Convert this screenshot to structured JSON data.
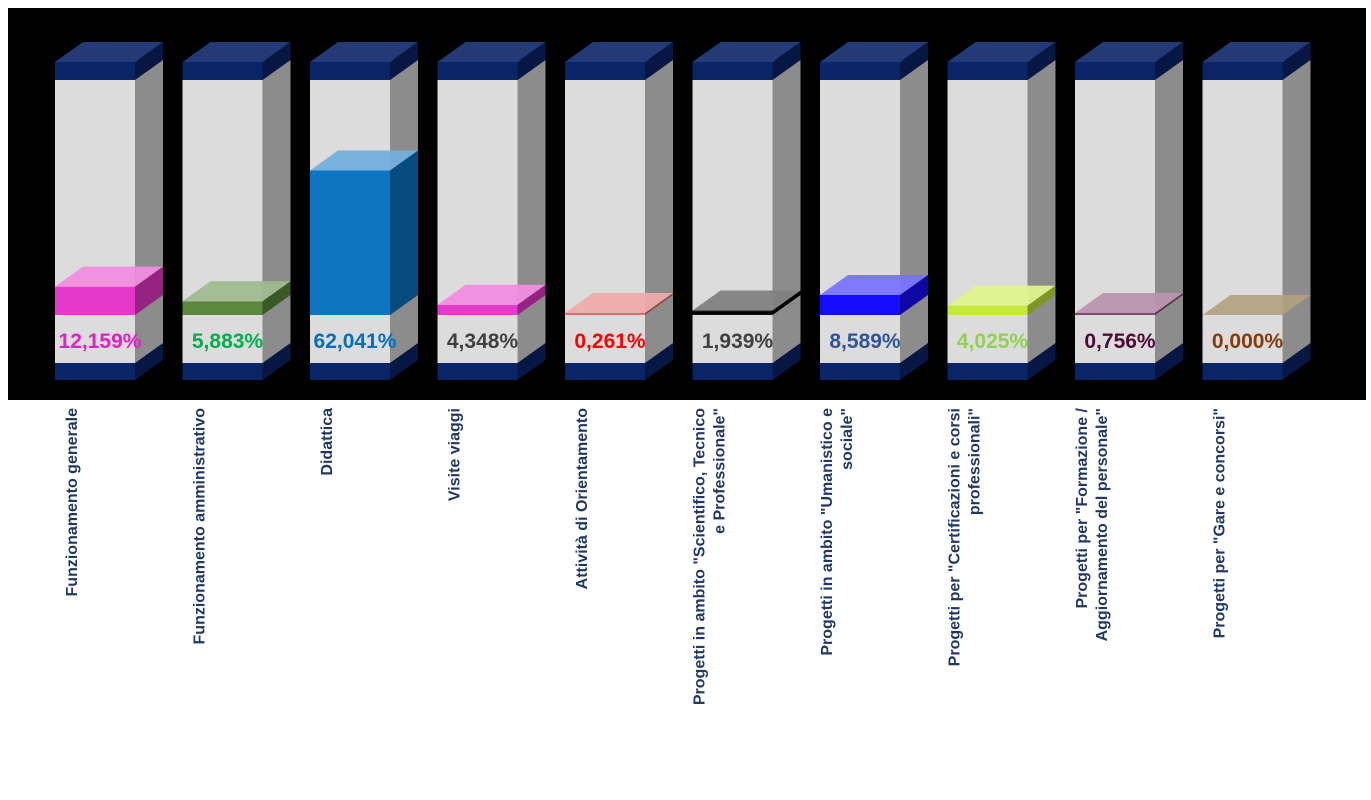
{
  "chart_data": {
    "type": "bar",
    "categories": [
      [
        "Funzionamento generale"
      ],
      [
        "Funzionamento amministrativo"
      ],
      [
        "Didattica"
      ],
      [
        "Visite viaggi"
      ],
      [
        "Attività di Orientamento"
      ],
      [
        "Progetti in ambito \"Scientifico, Tecnico",
        "e Professionale\""
      ],
      [
        "Progetti in ambito \"Umanistico e",
        "sociale\""
      ],
      [
        "Progetti per \"Certificazioni e corsi",
        "professionali\""
      ],
      [
        "Progetti per \"Formazione /",
        "Aggiornamento del personale\""
      ],
      [
        "Progetti per \"Gare e concorsi\""
      ]
    ],
    "values": [
      12.159,
      5.883,
      62.041,
      4.348,
      0.261,
      1.939,
      8.589,
      4.025,
      0.756,
      0.0
    ],
    "value_labels": [
      "12,159%",
      "5,883%",
      "62,041%",
      "4,348%",
      "0,261%",
      "1,939%",
      "8,589%",
      "4,025%",
      "0,756%",
      "0,000%"
    ],
    "label_colors": [
      "#e61ec8",
      "#00b050",
      "#0070c0",
      "#404040",
      "#ff0000",
      "#404040",
      "#2f5597",
      "#92d050",
      "#4d0a3a",
      "#843c0c"
    ],
    "fill_colors": [
      "#e62ec8",
      "#548235",
      "#0070c0",
      "#e62ec8",
      "#e06666",
      "#1a1a1a",
      "#0a00ff",
      "#c4e830",
      "#7f3f6a",
      "#a08a60"
    ],
    "ylim": [
      0,
      100
    ],
    "background": "#000000",
    "cylinder_color": "#dcdcdc",
    "cap_color": "#0a2468",
    "title": "",
    "xlabel": "",
    "ylabel": ""
  }
}
